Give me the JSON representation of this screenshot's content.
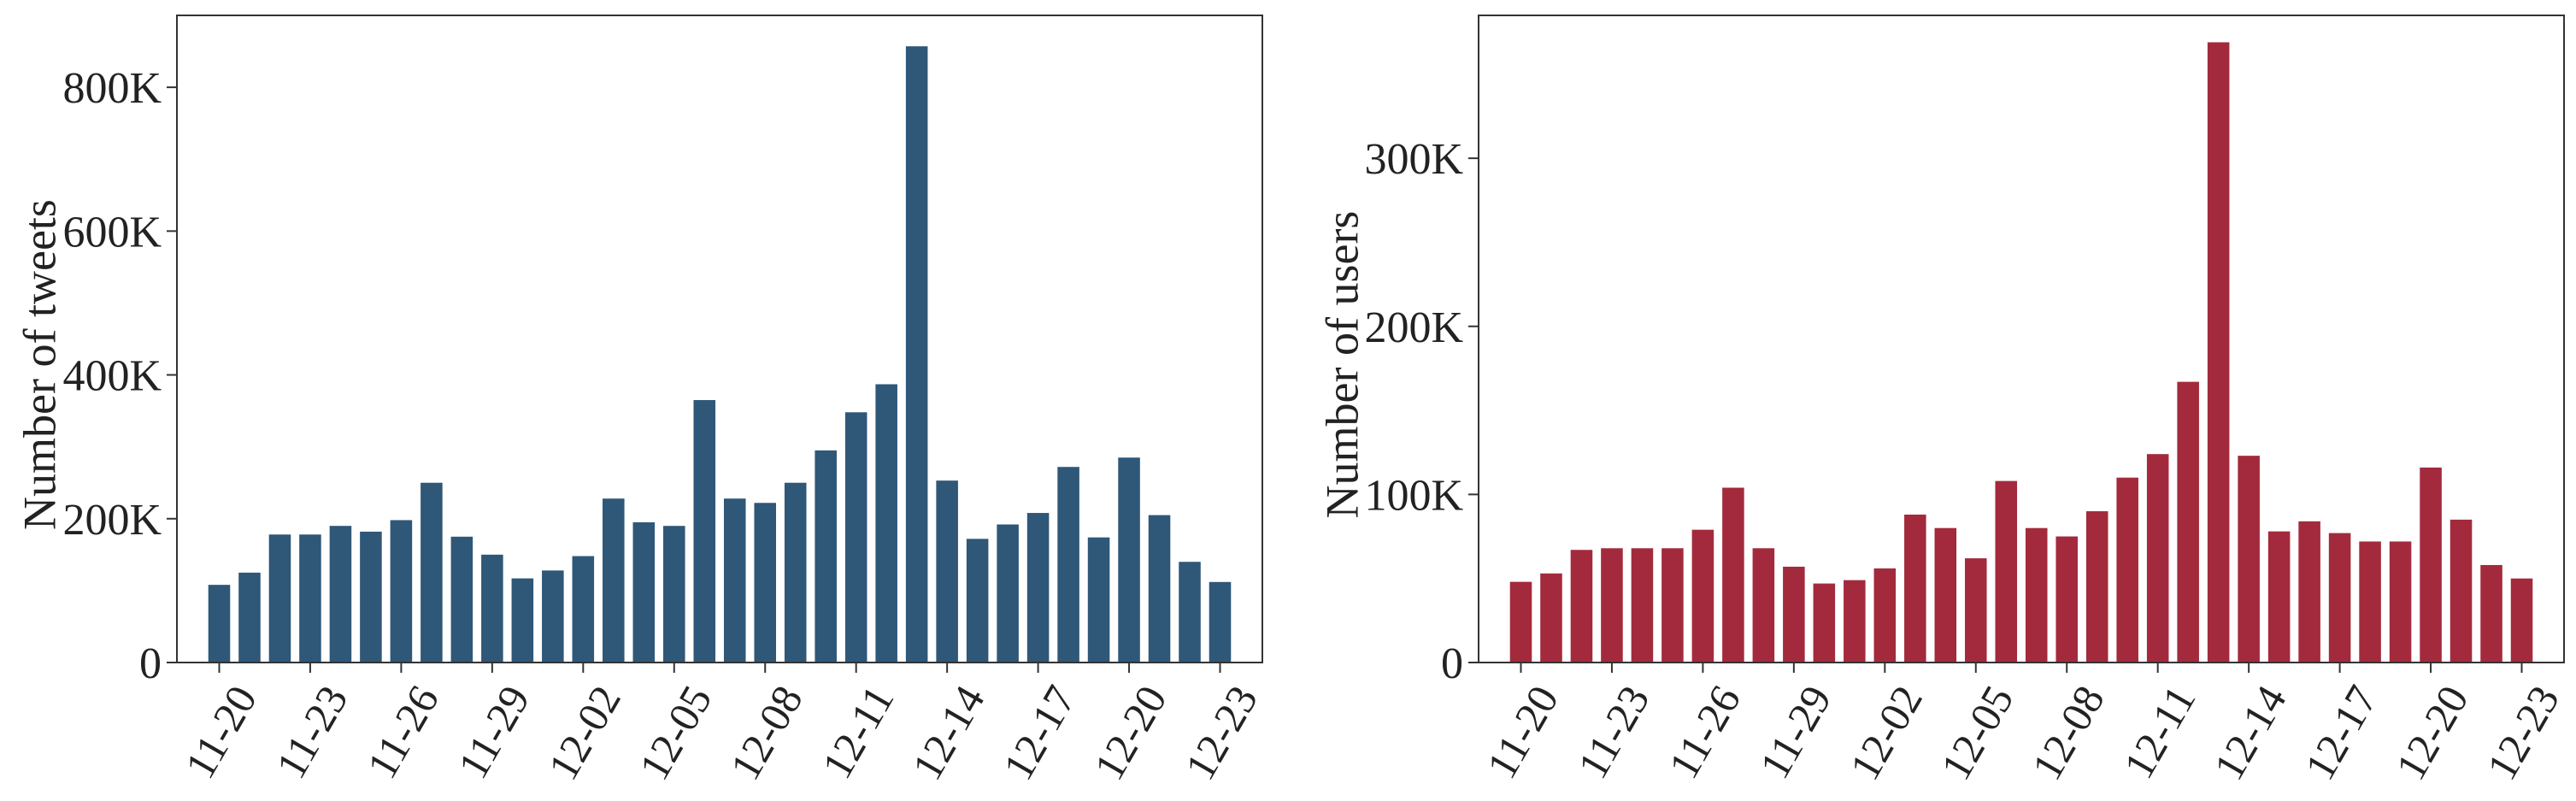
{
  "chart_data": [
    {
      "type": "bar",
      "ylabel": "Number of tweets",
      "xlabel": "",
      "color": "#2f5778",
      "ylim": [
        0,
        900000
      ],
      "yticks": [
        0,
        200000,
        400000,
        600000,
        800000
      ],
      "ytick_labels": [
        "0",
        "200K",
        "400K",
        "600K",
        "800K"
      ],
      "xticks": [
        "11-20",
        "11-23",
        "11-26",
        "11-29",
        "12-02",
        "12-05",
        "12-08",
        "12-11",
        "12-14",
        "12-17",
        "12-20",
        "12-23"
      ],
      "categories": [
        "11-20",
        "11-21",
        "11-22",
        "11-23",
        "11-24",
        "11-25",
        "11-26",
        "11-27",
        "11-28",
        "11-29",
        "11-30",
        "12-01",
        "12-02",
        "12-03",
        "12-04",
        "12-05",
        "12-06",
        "12-07",
        "12-08",
        "12-09",
        "12-10",
        "12-11",
        "12-12",
        "12-13",
        "12-14",
        "12-15",
        "12-16",
        "12-17",
        "12-18",
        "12-19",
        "12-20",
        "12-21",
        "12-22",
        "12-23"
      ],
      "values": [
        108000,
        125000,
        178000,
        178000,
        190000,
        182000,
        198000,
        250000,
        175000,
        150000,
        117000,
        128000,
        148000,
        228000,
        195000,
        190000,
        365000,
        228000,
        222000,
        250000,
        295000,
        348000,
        387000,
        857000,
        253000,
        172000,
        192000,
        208000,
        272000,
        174000,
        285000,
        205000,
        140000,
        112000
      ]
    },
    {
      "type": "bar",
      "ylabel": "Number of users",
      "xlabel": "",
      "color": "#a32a3c",
      "ylim": [
        0,
        385000
      ],
      "yticks": [
        0,
        100000,
        200000,
        300000
      ],
      "ytick_labels": [
        "0",
        "100K",
        "200K",
        "300K"
      ],
      "xticks": [
        "11-20",
        "11-23",
        "11-26",
        "11-29",
        "12-02",
        "12-05",
        "12-08",
        "12-11",
        "12-14",
        "12-17",
        "12-20",
        "12-23"
      ],
      "categories": [
        "11-20",
        "11-21",
        "11-22",
        "11-23",
        "11-24",
        "11-25",
        "11-26",
        "11-27",
        "11-28",
        "11-29",
        "11-30",
        "12-01",
        "12-02",
        "12-03",
        "12-04",
        "12-05",
        "12-06",
        "12-07",
        "12-08",
        "12-09",
        "12-10",
        "12-11",
        "12-12",
        "12-13",
        "12-14",
        "12-15",
        "12-16",
        "12-17",
        "12-18",
        "12-19",
        "12-20",
        "12-21",
        "12-22",
        "12-23"
      ],
      "values": [
        48000,
        53000,
        67000,
        68000,
        68000,
        68000,
        79000,
        104000,
        68000,
        57000,
        47000,
        49000,
        56000,
        88000,
        80000,
        62000,
        108000,
        80000,
        75000,
        90000,
        110000,
        124000,
        167000,
        369000,
        123000,
        78000,
        84000,
        77000,
        72000,
        72000,
        116000,
        85000,
        58000,
        50000
      ]
    }
  ]
}
